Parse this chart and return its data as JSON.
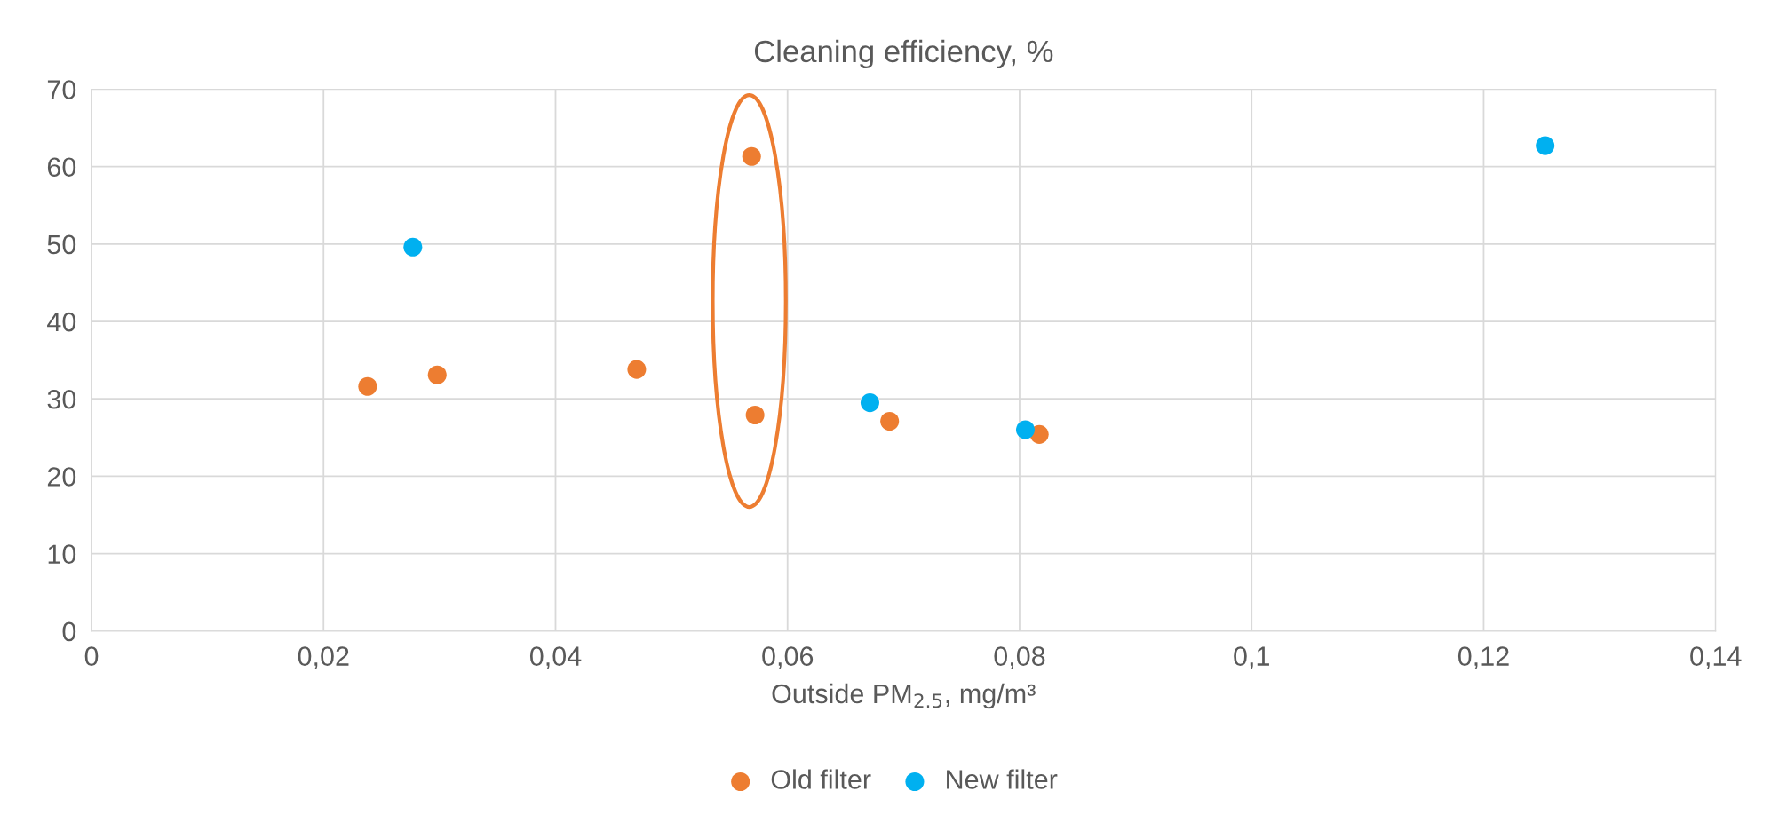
{
  "chart_data": {
    "type": "scatter",
    "title": "Cleaning efficiency, %",
    "xlabel": "Outside PM$_{2.5}$, mg/m³",
    "series": [
      {
        "name": "Old filter",
        "color": "#ed7d31",
        "x": [
          0.0238,
          0.0298,
          0.047,
          0.0569,
          0.0572,
          0.0688,
          0.0817
        ],
        "values": [
          31.6,
          33.1,
          33.8,
          61.3,
          27.9,
          27.1,
          25.4
        ]
      },
      {
        "name": "New filter",
        "color": "#00b0f0",
        "x": [
          0.0277,
          0.0671,
          0.0805,
          0.1253
        ],
        "values": [
          49.6,
          29.5,
          26.0,
          62.7
        ]
      }
    ],
    "xlim": [
      0,
      0.14
    ],
    "xticks": [
      0,
      {
        "value": 0.02,
        "label": "0,02"
      },
      {
        "value": 0.04,
        "label": "0,04"
      },
      {
        "value": 0.06,
        "label": "0,06"
      },
      {
        "value": 0.08,
        "label": "0,08"
      },
      {
        "value": 0.1,
        "label": "0,1"
      },
      {
        "value": 0.12,
        "label": "0,12"
      },
      {
        "value": 0.14,
        "label": "0,14"
      }
    ],
    "ylim": [
      0,
      70
    ],
    "yticks": [
      0,
      10,
      20,
      30,
      40,
      50,
      60,
      70
    ],
    "grid": true,
    "legend": "bottom",
    "marker": "circle"
  }
}
